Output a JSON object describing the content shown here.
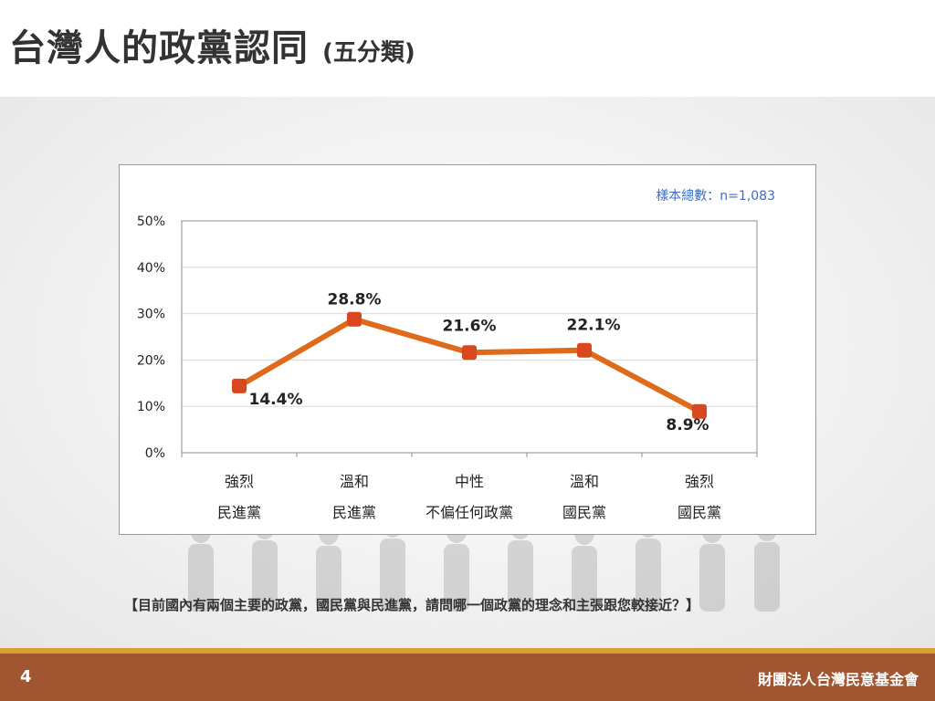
{
  "slide": {
    "title": "台灣人的政黨認同",
    "title_suffix": "(五分類)",
    "question": "【目前國內有兩個主要的政黨，國民黨與民進黨，請問哪一個政黨的理念和主張跟您較接近？】",
    "page_number": "4",
    "organization": "財團法人台灣民意基金會"
  },
  "chart_data": {
    "type": "line",
    "sample_size_label": "樣本總數：n=1,083",
    "categories": [
      [
        "強烈",
        "民進黨"
      ],
      [
        "溫和",
        "民進黨"
      ],
      [
        "中性",
        "不偏任何政黨"
      ],
      [
        "溫和",
        "國民黨"
      ],
      [
        "強烈",
        "國民黨"
      ]
    ],
    "values": [
      14.4,
      28.8,
      21.6,
      22.1,
      8.9
    ],
    "data_labels": [
      "14.4%",
      "28.8%",
      "21.6%",
      "22.1%",
      "8.9%"
    ],
    "y_ticks": [
      "0%",
      "10%",
      "20%",
      "30%",
      "40%",
      "50%"
    ],
    "ylim": [
      0,
      50
    ],
    "grid": true,
    "line_color": "#e06a1b",
    "marker_color": "#d8471d"
  }
}
